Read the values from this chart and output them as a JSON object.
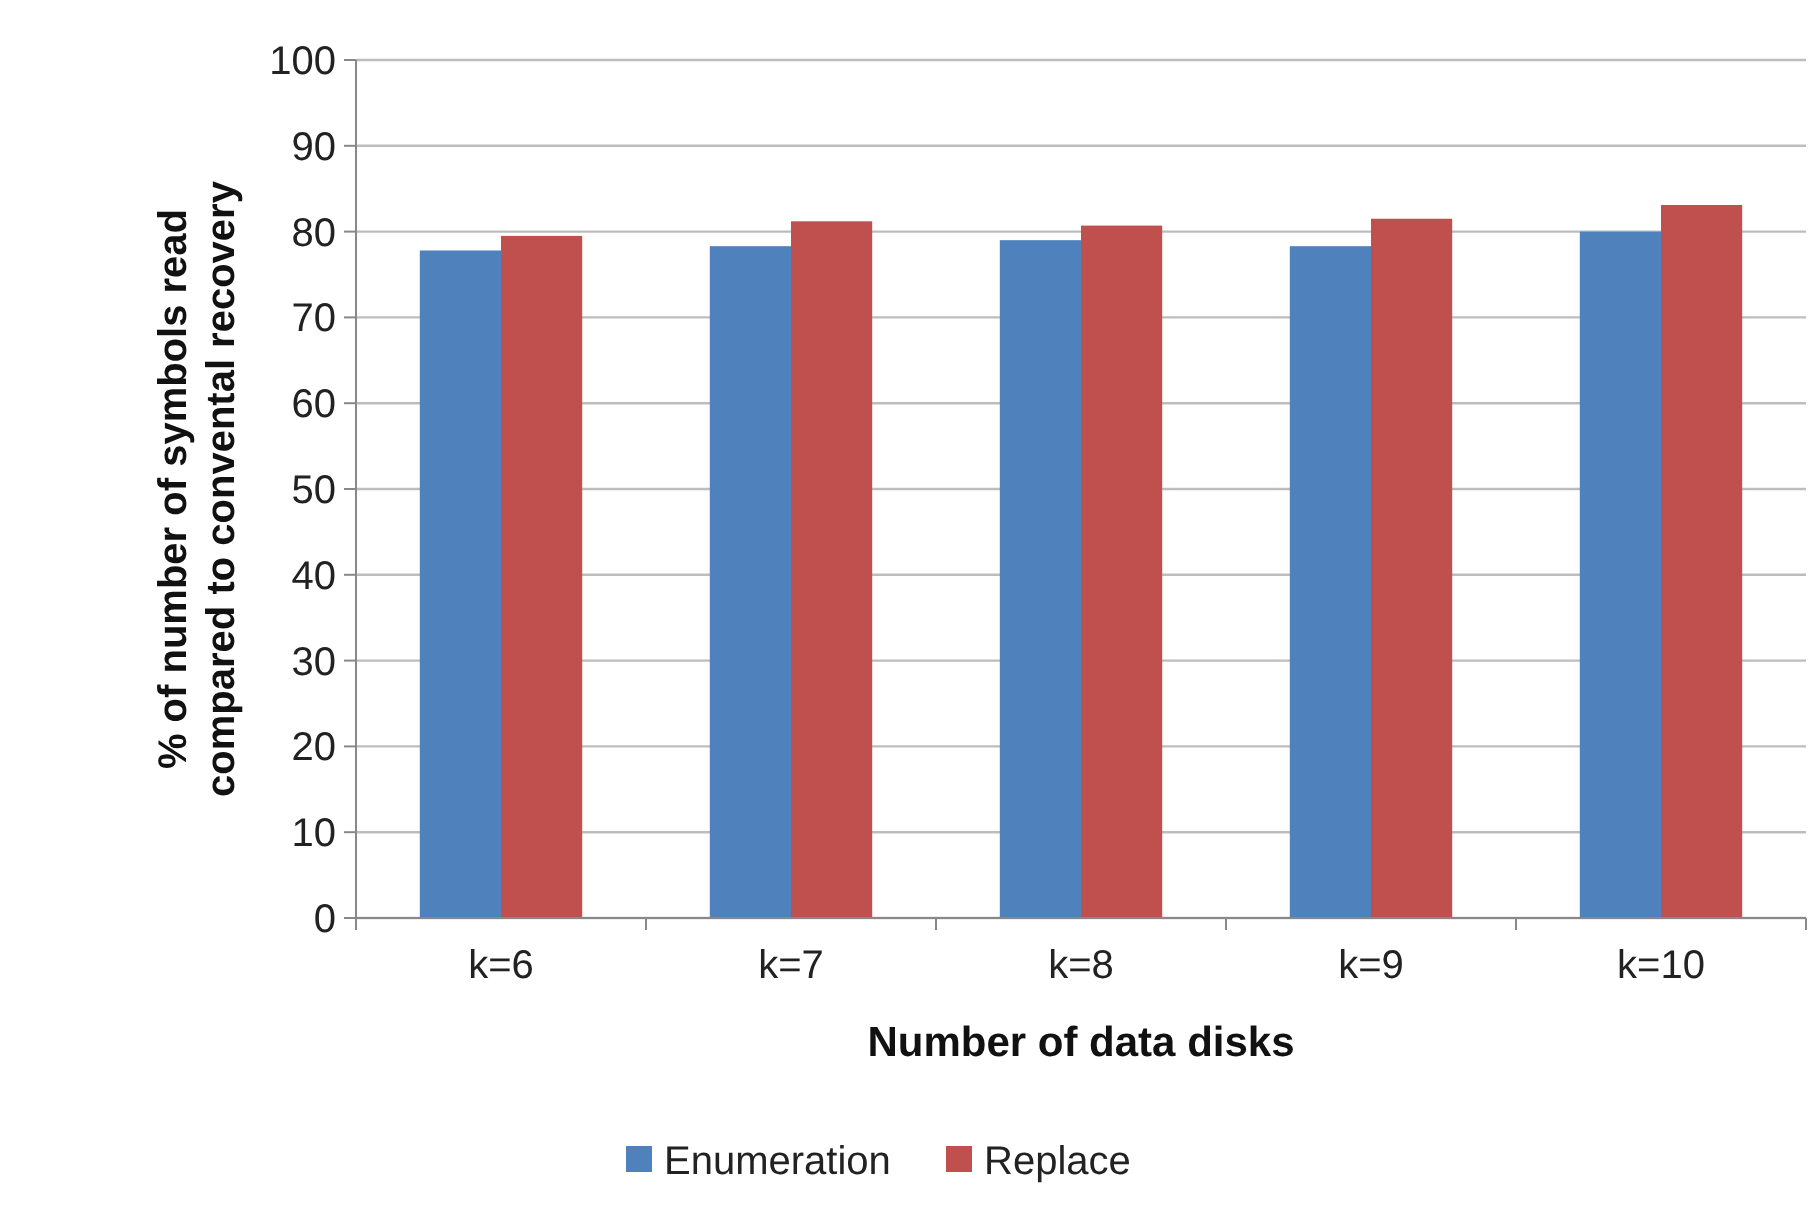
{
  "chart_data": {
    "type": "bar",
    "xlabel": "Number of data disks",
    "ylabel": "% of number of symbols read compared to convental recovery",
    "categories": [
      "k=6",
      "k=7",
      "k=8",
      "k=9",
      "k=10"
    ],
    "series": [
      {
        "name": "Enumeration",
        "color": "#4f81bd",
        "values": [
          77.8,
          78.3,
          79.0,
          78.3,
          80.0
        ]
      },
      {
        "name": "Replace",
        "color": "#c0504d",
        "values": [
          79.5,
          81.2,
          80.7,
          81.5,
          83.1
        ]
      }
    ],
    "ylim": [
      0,
      100
    ],
    "yticks": [
      0,
      10,
      20,
      30,
      40,
      50,
      60,
      70,
      80,
      90,
      100
    ],
    "grid": "y",
    "legend": "bottom"
  }
}
